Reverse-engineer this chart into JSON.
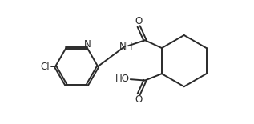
{
  "background": "#ffffff",
  "line_color": "#2a2a2a",
  "line_width": 1.4,
  "font_size": 8.5,
  "xlim": [
    0,
    10.5
  ],
  "ylim": [
    0,
    5.5
  ]
}
